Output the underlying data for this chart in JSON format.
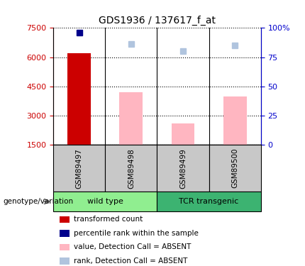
{
  "title": "GDS1936 / 137617_f_at",
  "samples": [
    "GSM89497",
    "GSM89498",
    "GSM89499",
    "GSM89500"
  ],
  "groups": [
    {
      "name": "wild type",
      "samples": [
        "GSM89497",
        "GSM89498"
      ],
      "color": "#90EE90"
    },
    {
      "name": "TCR transgenic",
      "samples": [
        "GSM89499",
        "GSM89500"
      ],
      "color": "#3CB371"
    }
  ],
  "transformed_count": [
    6200,
    null,
    null,
    null
  ],
  "percentile_rank": [
    96,
    null,
    null,
    null
  ],
  "value_absent": [
    null,
    4200,
    2600,
    4000
  ],
  "rank_absent": [
    null,
    86,
    80,
    85
  ],
  "ylim_left": [
    1500,
    7500
  ],
  "ylim_right": [
    0,
    100
  ],
  "yticks_left": [
    1500,
    3000,
    4500,
    6000,
    7500
  ],
  "yticks_right": [
    0,
    25,
    50,
    75,
    100
  ],
  "ylabel_left_color": "#CC0000",
  "ylabel_right_color": "#0000CC",
  "transformed_color": "#CC0000",
  "percentile_color": "#00008B",
  "value_absent_color": "#FFB6C1",
  "rank_absent_color": "#B0C4DE",
  "sample_box_color": "#C8C8C8",
  "group_label": "genotype/variation",
  "legend_items": [
    {
      "label": "transformed count",
      "color": "#CC0000"
    },
    {
      "label": "percentile rank within the sample",
      "color": "#00008B"
    },
    {
      "label": "value, Detection Call = ABSENT",
      "color": "#FFB6C1"
    },
    {
      "label": "rank, Detection Call = ABSENT",
      "color": "#B0C4DE"
    }
  ]
}
